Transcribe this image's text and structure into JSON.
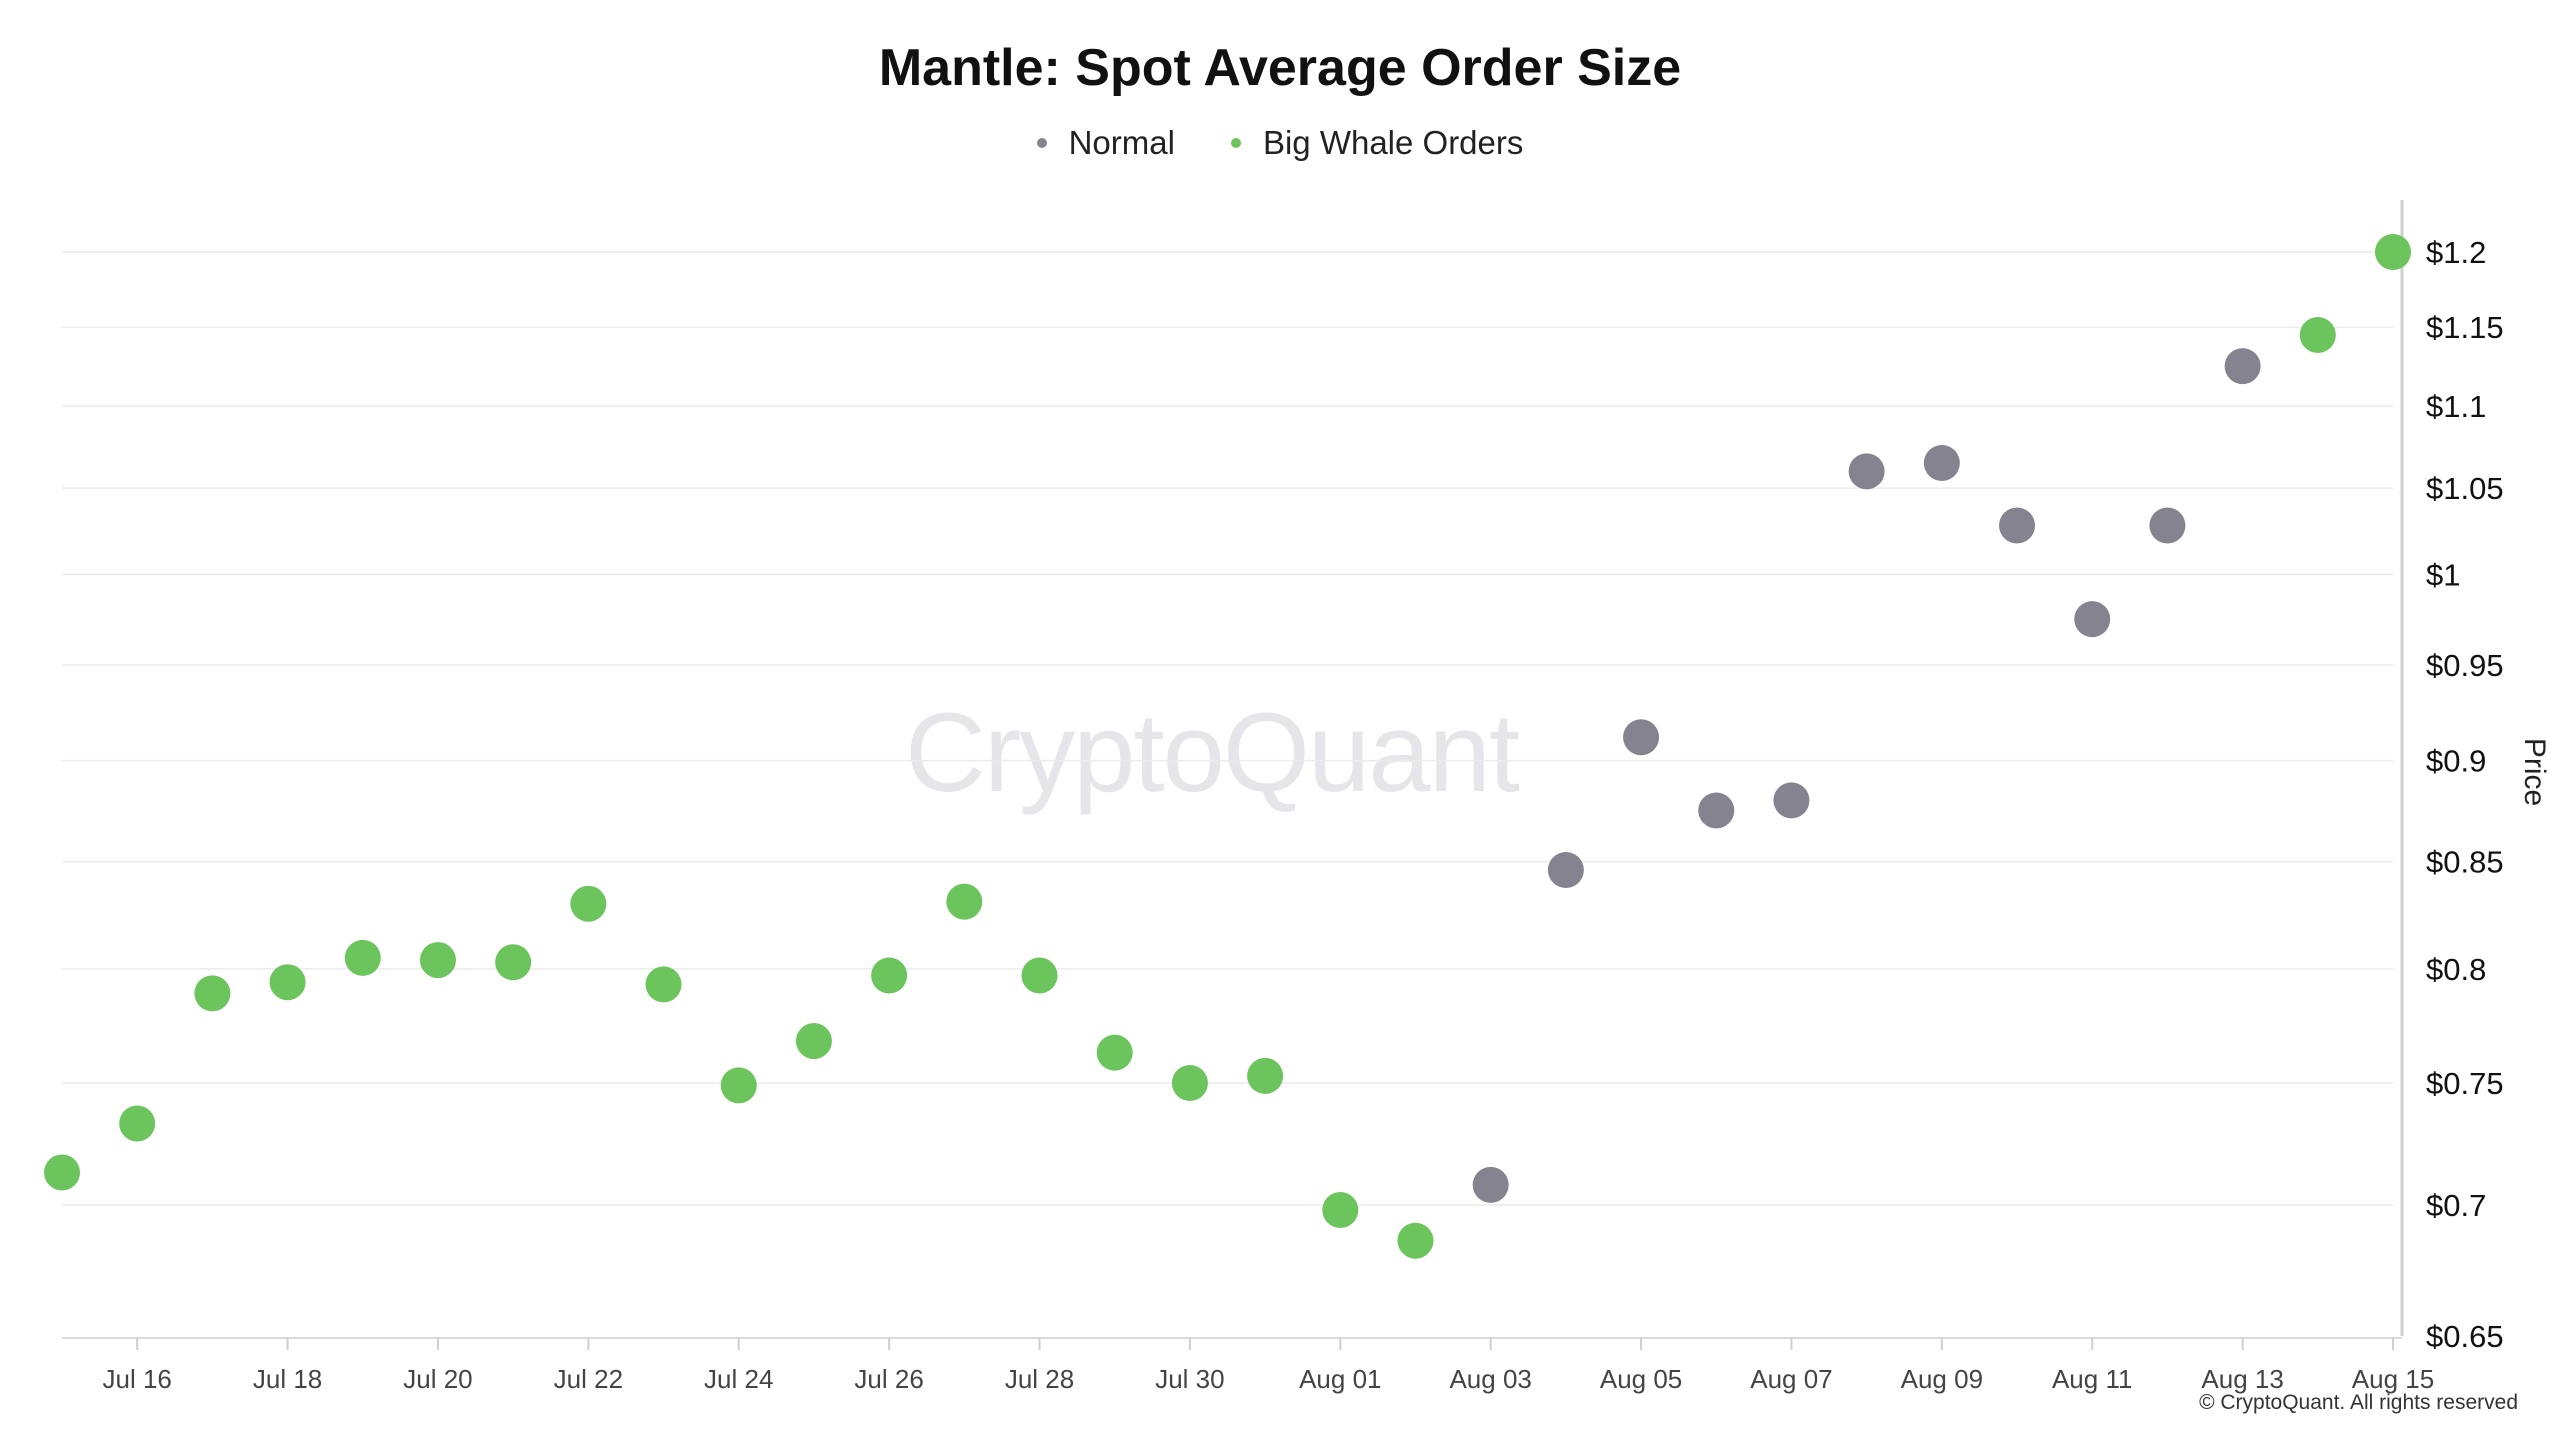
{
  "chart_data": {
    "type": "scatter",
    "title": "Mantle: Spot Average Order Size",
    "ylabel": "Price",
    "xlabel": "",
    "ylim": [
      0.65,
      1.2
    ],
    "y_scale": "log",
    "y_ticks": [
      "$0.65",
      "$0.7",
      "$0.75",
      "$0.8",
      "$0.85",
      "$0.9",
      "$0.95",
      "$1",
      "$1.05",
      "$1.1",
      "$1.15",
      "$1.2"
    ],
    "y_tick_values": [
      0.65,
      0.7,
      0.75,
      0.8,
      0.85,
      0.9,
      0.95,
      1.0,
      1.05,
      1.1,
      1.15,
      1.2
    ],
    "x_ticks": [
      "Jul 16",
      "Jul 18",
      "Jul 20",
      "Jul 22",
      "Jul 24",
      "Jul 26",
      "Jul 28",
      "Jul 30",
      "Aug 01",
      "Aug 03",
      "Aug 05",
      "Aug 07",
      "Aug 09",
      "Aug 11",
      "Aug 13",
      "Aug 15"
    ],
    "x": [
      "Jul 15",
      "Jul 16",
      "Jul 17",
      "Jul 18",
      "Jul 19",
      "Jul 20",
      "Jul 21",
      "Jul 22",
      "Jul 23",
      "Jul 24",
      "Jul 25",
      "Jul 26",
      "Jul 27",
      "Jul 28",
      "Jul 29",
      "Jul 30",
      "Jul 31",
      "Aug 01",
      "Aug 02",
      "Aug 03",
      "Aug 04",
      "Aug 05",
      "Aug 06",
      "Aug 07",
      "Aug 08",
      "Aug 09",
      "Aug 10",
      "Aug 11",
      "Aug 12",
      "Aug 13",
      "Aug 14",
      "Aug 15"
    ],
    "values": [
      0.713,
      0.733,
      0.789,
      0.794,
      0.805,
      0.804,
      0.803,
      0.83,
      0.793,
      0.749,
      0.768,
      0.797,
      0.831,
      0.797,
      0.763,
      0.75,
      0.753,
      0.698,
      0.686,
      0.708,
      0.846,
      0.912,
      0.875,
      0.88,
      1.06,
      1.065,
      1.028,
      0.975,
      1.028,
      1.125,
      1.145,
      1.2
    ],
    "point_series": [
      "Big Whale Orders",
      "Big Whale Orders",
      "Big Whale Orders",
      "Big Whale Orders",
      "Big Whale Orders",
      "Big Whale Orders",
      "Big Whale Orders",
      "Big Whale Orders",
      "Big Whale Orders",
      "Big Whale Orders",
      "Big Whale Orders",
      "Big Whale Orders",
      "Big Whale Orders",
      "Big Whale Orders",
      "Big Whale Orders",
      "Big Whale Orders",
      "Big Whale Orders",
      "Big Whale Orders",
      "Big Whale Orders",
      "Normal",
      "Normal",
      "Normal",
      "Normal",
      "Normal",
      "Normal",
      "Normal",
      "Normal",
      "Normal",
      "Normal",
      "Normal",
      "Big Whale Orders",
      "Big Whale Orders"
    ],
    "series": [
      {
        "name": "Normal",
        "color": "#85838f"
      },
      {
        "name": "Big Whale Orders",
        "color": "#6cc45c"
      }
    ],
    "legend_position": "top-center",
    "grid": true
  },
  "watermark": "CryptoQuant",
  "copyright": "© CryptoQuant. All rights reserved"
}
